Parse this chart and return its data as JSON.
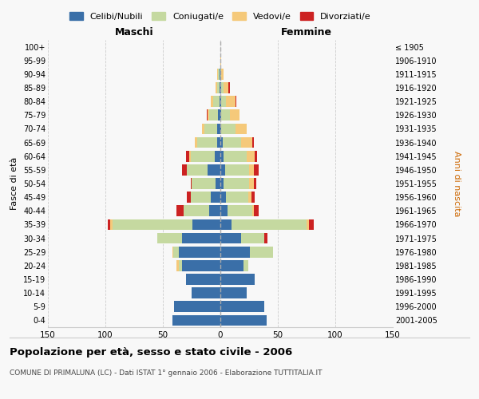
{
  "age_groups": [
    "0-4",
    "5-9",
    "10-14",
    "15-19",
    "20-24",
    "25-29",
    "30-34",
    "35-39",
    "40-44",
    "45-49",
    "50-54",
    "55-59",
    "60-64",
    "65-69",
    "70-74",
    "75-79",
    "80-84",
    "85-89",
    "90-94",
    "95-99",
    "100+"
  ],
  "birth_years": [
    "2001-2005",
    "1996-2000",
    "1991-1995",
    "1986-1990",
    "1981-1985",
    "1976-1980",
    "1971-1975",
    "1966-1970",
    "1961-1965",
    "1956-1960",
    "1951-1955",
    "1946-1950",
    "1941-1945",
    "1936-1940",
    "1931-1935",
    "1926-1930",
    "1921-1925",
    "1916-1920",
    "1911-1915",
    "1906-1910",
    "≤ 1905"
  ],
  "maschi": {
    "celibi": [
      42,
      40,
      25,
      30,
      33,
      36,
      33,
      24,
      10,
      8,
      4,
      11,
      5,
      3,
      3,
      2,
      1,
      1,
      1,
      0,
      0
    ],
    "coniugati": [
      0,
      0,
      0,
      0,
      3,
      5,
      22,
      70,
      22,
      18,
      21,
      18,
      21,
      17,
      11,
      8,
      5,
      2,
      1,
      0,
      0
    ],
    "vedovi": [
      0,
      0,
      0,
      0,
      2,
      1,
      0,
      2,
      0,
      0,
      0,
      0,
      1,
      2,
      2,
      1,
      2,
      1,
      1,
      0,
      0
    ],
    "divorziati": [
      0,
      0,
      0,
      0,
      0,
      0,
      0,
      2,
      6,
      3,
      1,
      4,
      3,
      0,
      0,
      1,
      0,
      0,
      0,
      0,
      0
    ]
  },
  "femmine": {
    "nubili": [
      40,
      38,
      23,
      30,
      20,
      26,
      18,
      10,
      6,
      5,
      3,
      4,
      3,
      2,
      1,
      1,
      1,
      1,
      0,
      0,
      0
    ],
    "coniugate": [
      0,
      0,
      0,
      0,
      4,
      20,
      20,
      65,
      22,
      19,
      22,
      21,
      20,
      16,
      12,
      7,
      4,
      2,
      1,
      0,
      0
    ],
    "vedove": [
      0,
      0,
      0,
      0,
      0,
      0,
      0,
      2,
      1,
      3,
      4,
      4,
      7,
      10,
      10,
      9,
      8,
      4,
      2,
      1,
      0
    ],
    "divorziate": [
      0,
      0,
      0,
      0,
      0,
      0,
      3,
      4,
      4,
      3,
      2,
      4,
      2,
      1,
      0,
      0,
      1,
      1,
      0,
      0,
      0
    ]
  },
  "colors": {
    "celibi_nubili": "#3a6fa8",
    "coniugati_e": "#c5d9a0",
    "vedovi_e": "#f5c97a",
    "divorziati_e": "#cc2222"
  },
  "xlim": 150,
  "title": "Popolazione per età, sesso e stato civile - 2006",
  "subtitle": "COMUNE DI PRIMALUNA (LC) - Dati ISTAT 1° gennaio 2006 - Elaborazione TUTTITALIA.IT",
  "xlabel_left": "Maschi",
  "xlabel_right": "Femmine",
  "ylabel_left": "Fasce di età",
  "ylabel_right": "Anni di nascita",
  "legend_labels": [
    "Celibi/Nubili",
    "Coniugati/e",
    "Vedovi/e",
    "Divorziati/e"
  ],
  "bg_color": "#f8f8f8",
  "plot_bg": "#f8f8f8",
  "grid_color": "#cccccc",
  "spine_color": "#cccccc"
}
